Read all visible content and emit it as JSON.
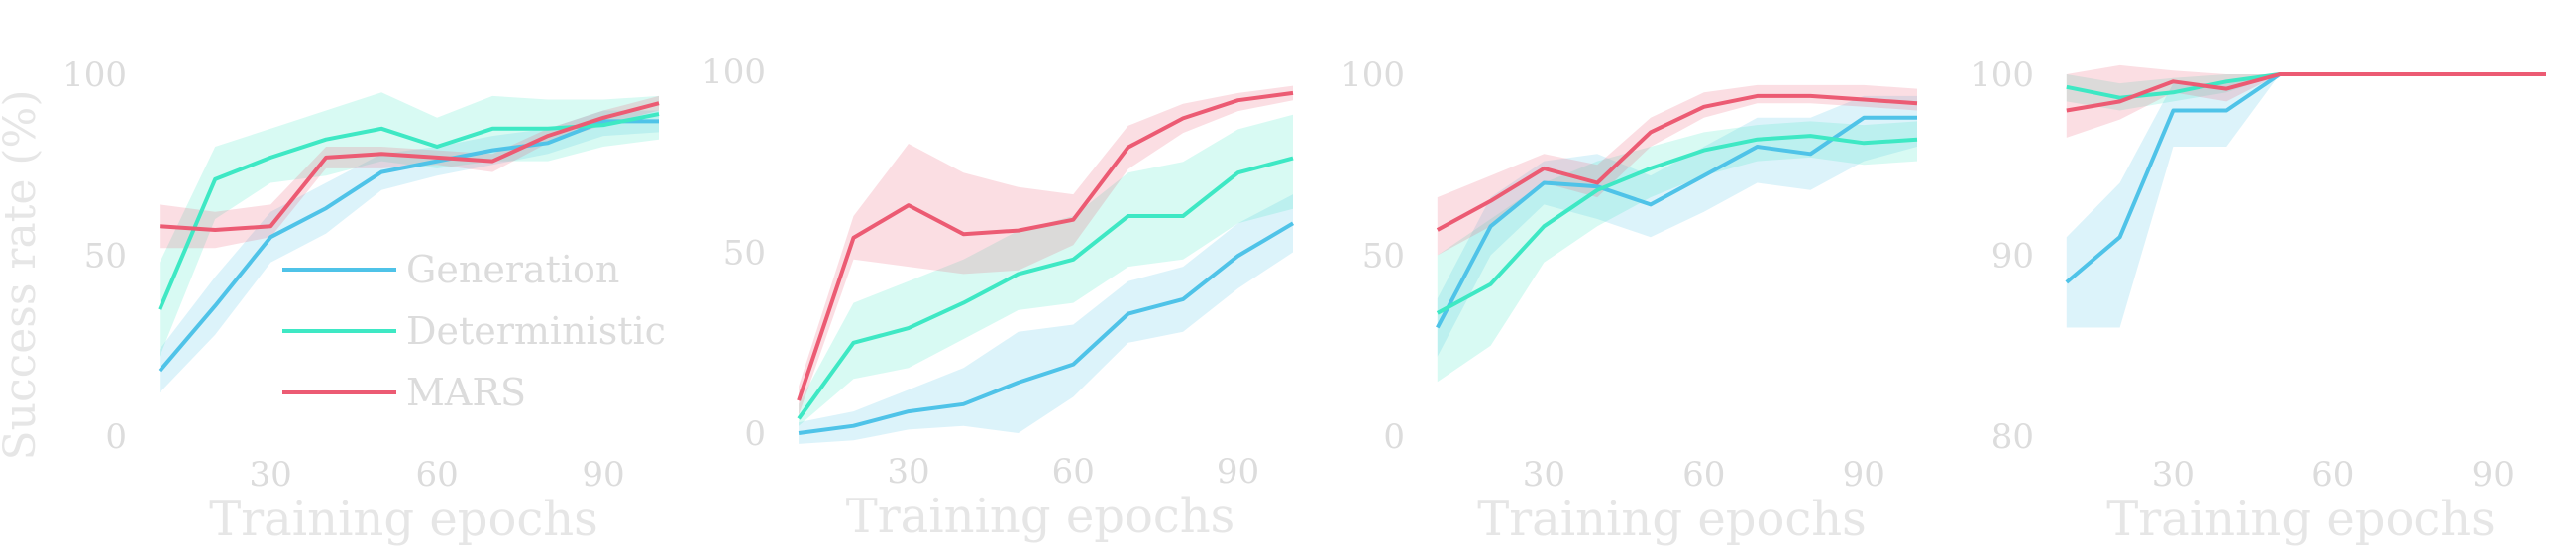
{
  "colors": {
    "Generation": "#4fc3e8",
    "Deterministic": "#3ee8c4",
    "MARS": "#ec5b73"
  },
  "chart_data": [
    {
      "type": "line",
      "ylabel": "Success rate (%)",
      "xlabel": "Training epochs",
      "xlim": [
        8,
        100
      ],
      "ylim": [
        0,
        100
      ],
      "xticks": [
        30,
        60,
        90
      ],
      "yticks": [
        0,
        50,
        100
      ],
      "legend": "inside-center",
      "x": [
        10,
        20,
        30,
        40,
        50,
        60,
        70,
        80,
        90,
        100
      ],
      "series": [
        {
          "name": "Generation",
          "values": [
            18,
            36,
            55,
            63,
            73,
            76,
            79,
            81,
            87,
            87
          ],
          "lower": [
            12,
            28,
            48,
            56,
            68,
            72,
            75,
            78,
            83,
            84
          ],
          "upper": [
            24,
            44,
            62,
            70,
            78,
            80,
            83,
            85,
            90,
            90
          ]
        },
        {
          "name": "Deterministic",
          "values": [
            35,
            71,
            77,
            82,
            85,
            80,
            85,
            85,
            86,
            89
          ],
          "lower": [
            22,
            60,
            70,
            72,
            76,
            74,
            76,
            76,
            80,
            82
          ],
          "upper": [
            48,
            80,
            85,
            90,
            95,
            88,
            94,
            93,
            93,
            94
          ]
        },
        {
          "name": "MARS",
          "values": [
            58,
            57,
            58,
            77,
            78,
            77,
            76,
            83,
            88,
            92
          ],
          "lower": [
            52,
            52,
            55,
            74,
            74,
            75,
            73,
            81,
            86,
            90
          ],
          "upper": [
            64,
            62,
            64,
            80,
            80,
            79,
            78,
            85,
            90,
            94
          ]
        }
      ]
    },
    {
      "type": "line",
      "ylabel": "",
      "xlabel": "Training epochs",
      "xlim": [
        8,
        100
      ],
      "ylim": [
        0,
        100
      ],
      "xticks": [
        30,
        60,
        90
      ],
      "yticks": [
        0,
        50,
        100
      ],
      "x": [
        10,
        20,
        30,
        40,
        50,
        60,
        70,
        80,
        90,
        100
      ],
      "series": [
        {
          "name": "Generation",
          "values": [
            0,
            2,
            6,
            8,
            14,
            19,
            33,
            37,
            49,
            58
          ],
          "lower": [
            -3,
            -2,
            1,
            2,
            0,
            10,
            25,
            28,
            40,
            50
          ],
          "upper": [
            3,
            6,
            12,
            18,
            28,
            30,
            42,
            46,
            58,
            66
          ]
        },
        {
          "name": "Deterministic",
          "values": [
            4,
            25,
            29,
            36,
            44,
            48,
            60,
            60,
            72,
            76
          ],
          "lower": [
            2,
            15,
            18,
            26,
            34,
            36,
            46,
            48,
            58,
            62
          ],
          "upper": [
            8,
            36,
            42,
            48,
            56,
            60,
            72,
            75,
            84,
            88
          ]
        },
        {
          "name": "MARS",
          "values": [
            9,
            54,
            63,
            55,
            56,
            59,
            79,
            87,
            92,
            94
          ],
          "lower": [
            5,
            48,
            46,
            44,
            45,
            52,
            73,
            83,
            89,
            92
          ],
          "upper": [
            13,
            60,
            80,
            72,
            68,
            66,
            85,
            91,
            94,
            96
          ]
        }
      ]
    },
    {
      "type": "line",
      "ylabel": "",
      "xlabel": "Training epochs",
      "xlim": [
        8,
        100
      ],
      "ylim": [
        0,
        100
      ],
      "xticks": [
        30,
        60,
        90
      ],
      "yticks": [
        0,
        50,
        100
      ],
      "x": [
        10,
        20,
        30,
        40,
        50,
        60,
        70,
        80,
        90,
        100
      ],
      "series": [
        {
          "name": "Generation",
          "values": [
            30,
            58,
            70,
            69,
            64,
            72,
            80,
            78,
            88,
            88
          ],
          "lower": [
            22,
            50,
            64,
            60,
            55,
            62,
            70,
            68,
            76,
            80
          ],
          "upper": [
            38,
            66,
            76,
            78,
            72,
            80,
            88,
            88,
            94,
            94
          ]
        },
        {
          "name": "Deterministic",
          "values": [
            34,
            42,
            58,
            68,
            74,
            79,
            82,
            83,
            81,
            82
          ],
          "lower": [
            15,
            25,
            48,
            58,
            66,
            72,
            76,
            77,
            75,
            76
          ],
          "upper": [
            50,
            60,
            70,
            76,
            80,
            84,
            86,
            87,
            86,
            87
          ]
        },
        {
          "name": "MARS",
          "values": [
            57,
            65,
            74,
            70,
            84,
            91,
            94,
            94,
            93,
            92
          ],
          "lower": [
            50,
            58,
            70,
            66,
            80,
            88,
            92,
            92,
            91,
            90
          ],
          "upper": [
            66,
            72,
            78,
            75,
            88,
            95,
            97,
            97,
            97,
            96
          ]
        }
      ]
    },
    {
      "type": "line",
      "ylabel": "",
      "xlabel": "Training epochs",
      "xlim": [
        8,
        100
      ],
      "ylim": [
        80,
        100
      ],
      "xticks": [
        30,
        60,
        90
      ],
      "yticks": [
        80,
        90,
        100
      ],
      "x": [
        10,
        20,
        30,
        40,
        50,
        60,
        70,
        80,
        90,
        100
      ],
      "series": [
        {
          "name": "Generation",
          "values": [
            88.5,
            91,
            98,
            98,
            100,
            100,
            100,
            100,
            100,
            100
          ],
          "lower": [
            86,
            86,
            96,
            96,
            100,
            100,
            100,
            100,
            100,
            100
          ],
          "upper": [
            91,
            94,
            99.5,
            99.5,
            100,
            100,
            100,
            100,
            100,
            100
          ]
        },
        {
          "name": "Deterministic",
          "values": [
            99.3,
            98.7,
            99,
            99.6,
            100,
            100,
            100,
            100,
            100,
            100
          ],
          "lower": [
            98.5,
            98,
            98.5,
            99,
            100,
            100,
            100,
            100,
            100,
            100
          ],
          "upper": [
            100,
            99.5,
            99.8,
            100,
            100,
            100,
            100,
            100,
            100,
            100
          ]
        },
        {
          "name": "MARS",
          "values": [
            98,
            98.5,
            99.6,
            99.2,
            100,
            100,
            100,
            100,
            100,
            100
          ],
          "lower": [
            96.5,
            97.5,
            99,
            98.5,
            100,
            100,
            100,
            100,
            100,
            100
          ],
          "upper": [
            100,
            100.5,
            100.2,
            100,
            100,
            100,
            100,
            100,
            100,
            100
          ]
        }
      ]
    }
  ]
}
